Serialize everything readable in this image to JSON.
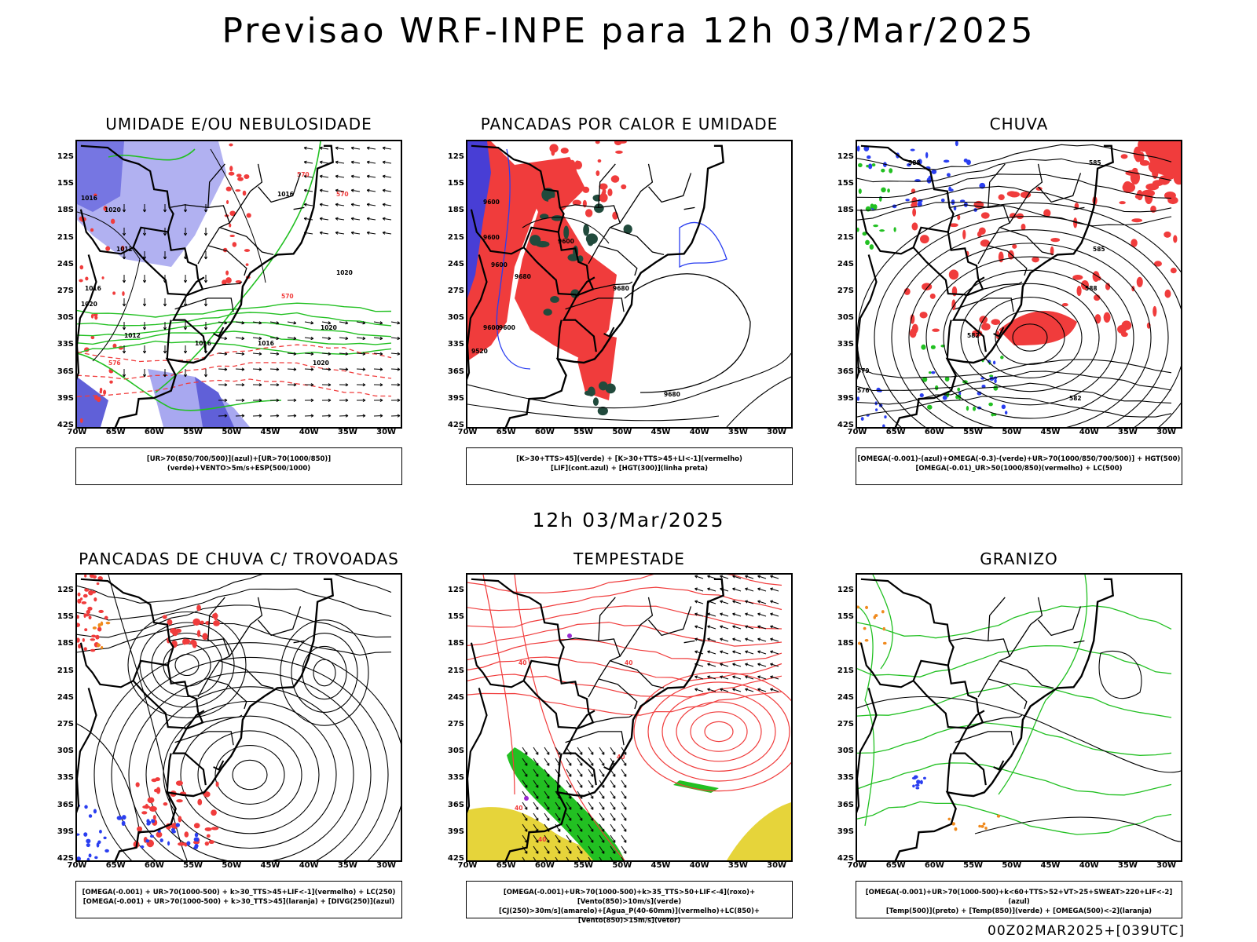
{
  "title": "Previsao WRF-INPE  para 12h 03/Mar/2025",
  "subtitle": "12h 03/Mar/2025",
  "footer": "00Z02MAR2025+[039UTC]",
  "axes": {
    "lat_ticks": [
      "12S",
      "15S",
      "18S",
      "21S",
      "24S",
      "27S",
      "30S",
      "33S",
      "36S",
      "39S",
      "42S"
    ],
    "lon_ticks": [
      "70W",
      "65W",
      "60W",
      "55W",
      "50W",
      "45W",
      "40W",
      "35W",
      "30W"
    ]
  },
  "panels": [
    {
      "title": "UMIDADE E/OU NEBULOSIDADE",
      "legend": [
        "[UR>70(850/700/500)](azul)+[UR>70(1000/850)](verde)+VENTO>5m/s+ESP(500/1000)"
      ]
    },
    {
      "title": "PANCADAS POR CALOR E UMIDADE",
      "legend": [
        "[K>30+TTS>45](verde) + [K>30+TTS>45+LI<-1](vermelho)",
        "[LIF](cont.azul) + [HGT(300)](linha preta)"
      ]
    },
    {
      "title": "CHUVA",
      "legend": [
        "[OMEGA(-0.001)-(azul)+OMEGA(-0.3)-(verde)+UR>70(1000/850/700/500)] + HGT(500)",
        "[OMEGA(-0.01)_UR>50(1000/850)(vermelho) + LC(500)"
      ]
    },
    {
      "title": "PANCADAS DE CHUVA C/ TROVOADAS",
      "legend": [
        "[OMEGA(-0.001) + UR>70(1000-500) + k>30_TTS>45+LIF<-1](vermelho) + LC(250)",
        "[OMEGA(-0.001) + UR>70(1000-500) + k>30_TTS>45](laranja) + [DIVG(250)](azul)"
      ]
    },
    {
      "title": "TEMPESTADE",
      "legend": [
        "[OMEGA(-0.001)+UR>70(1000-500)+k>35_TTS>50+LIF<-4](roxo)+[Vento(850)>10m/s](verde)",
        "[CJ(250)>30m/s](amarelo)+[Agua_P(40-60mm)](vermelho)+LC(850)+[Vento(850)>15m/s](vetor)"
      ]
    },
    {
      "title": "GRANIZO",
      "legend": [
        "[OMEGA(-0.001)+UR>70(1000-500)+k<60+TTS>52+VT>25+SWEAT>220+LIF<-2](azul)",
        "[Temp(500)](preto) + [Temp(850)](verde) + [OMEGA(500)<-2](laranja)"
      ]
    }
  ],
  "map_labels": {
    "p1": [
      "1016",
      "1020",
      "1016",
      "1012",
      "1020",
      "1016",
      "1012",
      "1020",
      "1016",
      "1020",
      "1020",
      "1016",
      "570",
      "570",
      "576",
      "570"
    ],
    "p2": [
      "9600",
      "9600",
      "9600",
      "9600",
      "9680",
      "9600",
      "9680",
      "9600",
      "9520",
      "9680"
    ],
    "p3": [
      "588",
      "585",
      "588",
      "582",
      "579",
      "585",
      "576",
      "582"
    ],
    "p5": [
      "40",
      "40",
      "40",
      "40",
      "40"
    ]
  },
  "colors": {
    "coast": "#000000",
    "red": "#f03c3c",
    "green": "#22c022",
    "blue": "#2a3ef0",
    "lightblue": "#a8a8f0",
    "darkgreen": "#214a3c",
    "yellow": "#e6d43a",
    "purple": "#9a2ad2",
    "orange": "#f08a1e"
  }
}
